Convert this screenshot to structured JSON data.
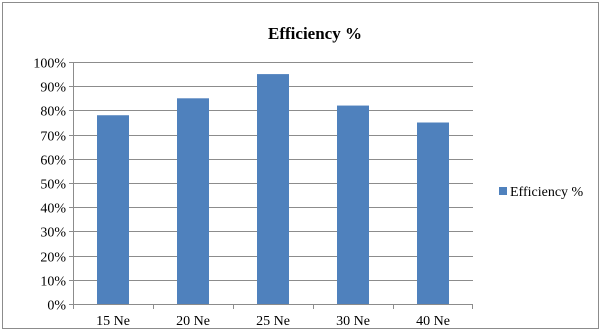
{
  "chart_data": {
    "type": "bar",
    "title": "Efficiency %",
    "categories": [
      "15 Ne",
      "20 Ne",
      "25 Ne",
      "30 Ne",
      "40 Ne"
    ],
    "series": [
      {
        "name": "Efficiency %",
        "values": [
          78,
          85,
          95,
          82,
          75
        ],
        "color": "#4F81BD"
      }
    ],
    "ylim": [
      0,
      100
    ],
    "yticks": [
      "0%",
      "10%",
      "20%",
      "30%",
      "40%",
      "50%",
      "60%",
      "70%",
      "80%",
      "90%",
      "100%"
    ],
    "grid": true,
    "legend_position": "right"
  }
}
